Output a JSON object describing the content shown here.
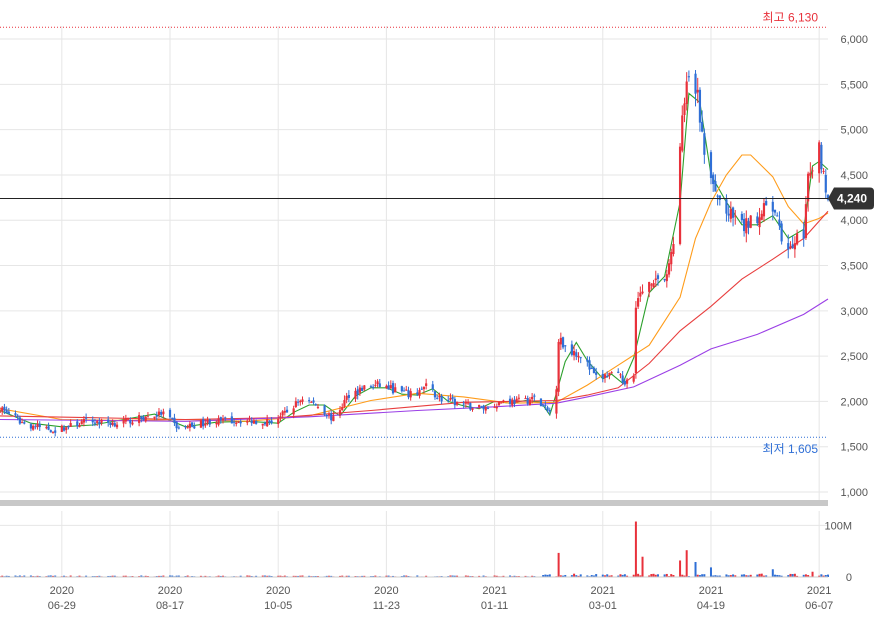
{
  "chart_data": {
    "type": "candlestick",
    "title": "",
    "price_axis": {
      "ylim": [
        1000,
        6100
      ],
      "ticks": [
        1000,
        1500,
        2000,
        2500,
        3000,
        3500,
        4000,
        4500,
        5000,
        5500,
        6000
      ],
      "tick_labels": [
        "1,000",
        "1,500",
        "2,000",
        "2,500",
        "3,000",
        "3,500",
        "4,000",
        "4,500",
        "5,000",
        "5,500",
        "6,000"
      ]
    },
    "volume_axis": {
      "ylim": [
        0,
        120
      ],
      "ticks": [
        0,
        100
      ],
      "tick_labels": [
        "0",
        "100M"
      ]
    },
    "x_axis": {
      "range": [
        "2020-06-01",
        "2021-06-11"
      ],
      "ticks": [
        {
          "date": "2020-06-29",
          "year": "2020",
          "label": "06-29"
        },
        {
          "date": "2020-08-17",
          "year": "2020",
          "label": "08-17"
        },
        {
          "date": "2020-10-05",
          "year": "2020",
          "label": "10-05"
        },
        {
          "date": "2020-11-23",
          "year": "2020",
          "label": "11-23"
        },
        {
          "date": "2021-01-11",
          "year": "2021",
          "label": "01-11"
        },
        {
          "date": "2021-03-01",
          "year": "2021",
          "label": "03-01"
        },
        {
          "date": "2021-04-19",
          "year": "2021",
          "label": "04-19"
        },
        {
          "date": "2021-06-07",
          "year": "2021",
          "label": "06-07"
        }
      ]
    },
    "high_marker": {
      "label": "최고 6,130",
      "value": 6130
    },
    "low_marker": {
      "label": "최저 1,605",
      "value": 1605
    },
    "current_price": {
      "label": "4,240",
      "value": 4240
    },
    "colors": {
      "up": "#e8313b",
      "down": "#2f6fd6",
      "high_line": "#e8313b",
      "low_line": "#2f6fd6",
      "ma5": "#2ca02c",
      "ma20": "#ff9c1a",
      "ma60": "#e83e3e",
      "ma120": "#9b3fe6",
      "grid": "#e6e6e6",
      "current_line": "#222222",
      "current_badge": "#333333"
    },
    "moving_averages": [
      {
        "period": 5,
        "color": "#2ca02c",
        "points": [
          [
            "2020-06-01",
            1900
          ],
          [
            "2020-06-15",
            1760
          ],
          [
            "2020-06-29",
            1720
          ],
          [
            "2020-07-13",
            1740
          ],
          [
            "2020-07-27",
            1800
          ],
          [
            "2020-08-10",
            1860
          ],
          [
            "2020-08-24",
            1720
          ],
          [
            "2020-09-07",
            1770
          ],
          [
            "2020-09-21",
            1780
          ],
          [
            "2020-10-05",
            1760
          ],
          [
            "2020-10-12",
            1880
          ],
          [
            "2020-10-19",
            1960
          ],
          [
            "2020-10-26",
            1960
          ],
          [
            "2020-11-02",
            1840
          ],
          [
            "2020-11-09",
            2060
          ],
          [
            "2020-11-16",
            2150
          ],
          [
            "2020-11-23",
            2150
          ],
          [
            "2020-11-30",
            2080
          ],
          [
            "2020-12-07",
            2070
          ],
          [
            "2020-12-14",
            2140
          ],
          [
            "2020-12-21",
            2000
          ],
          [
            "2020-12-28",
            1950
          ],
          [
            "2021-01-04",
            1920
          ],
          [
            "2021-01-11",
            2000
          ],
          [
            "2021-01-18",
            1980
          ],
          [
            "2021-01-25",
            2010
          ],
          [
            "2021-02-01",
            1990
          ],
          [
            "2021-02-05",
            1850
          ],
          [
            "2021-02-08",
            2090
          ],
          [
            "2021-02-12",
            2440
          ],
          [
            "2021-02-17",
            2650
          ],
          [
            "2021-02-22",
            2450
          ],
          [
            "2021-03-01",
            2250
          ],
          [
            "2021-03-05",
            2300
          ],
          [
            "2021-03-10",
            2200
          ],
          [
            "2021-03-15",
            2480
          ],
          [
            "2021-03-22",
            3200
          ],
          [
            "2021-03-29",
            3380
          ],
          [
            "2021-04-05",
            4200
          ],
          [
            "2021-04-09",
            5400
          ],
          [
            "2021-04-14",
            5300
          ],
          [
            "2021-04-19",
            4500
          ],
          [
            "2021-04-26",
            4200
          ],
          [
            "2021-05-03",
            3950
          ],
          [
            "2021-05-10",
            3950
          ],
          [
            "2021-05-17",
            4050
          ],
          [
            "2021-05-24",
            3800
          ],
          [
            "2021-05-31",
            3900
          ],
          [
            "2021-06-04",
            4600
          ],
          [
            "2021-06-07",
            4650
          ],
          [
            "2021-06-11",
            4560
          ]
        ]
      },
      {
        "period": 20,
        "color": "#ff9c1a",
        "points": [
          [
            "2020-06-01",
            1920
          ],
          [
            "2020-06-29",
            1800
          ],
          [
            "2020-07-27",
            1790
          ],
          [
            "2020-08-24",
            1800
          ],
          [
            "2020-09-21",
            1780
          ],
          [
            "2020-10-19",
            1840
          ],
          [
            "2020-11-16",
            2010
          ],
          [
            "2020-12-07",
            2090
          ],
          [
            "2020-12-28",
            2050
          ],
          [
            "2021-01-18",
            1980
          ],
          [
            "2021-02-08",
            1990
          ],
          [
            "2021-02-22",
            2180
          ],
          [
            "2021-03-08",
            2400
          ],
          [
            "2021-03-22",
            2620
          ],
          [
            "2021-04-05",
            3150
          ],
          [
            "2021-04-12",
            3800
          ],
          [
            "2021-04-19",
            4200
          ],
          [
            "2021-04-26",
            4500
          ],
          [
            "2021-05-03",
            4720
          ],
          [
            "2021-05-07",
            4720
          ],
          [
            "2021-05-17",
            4480
          ],
          [
            "2021-05-24",
            4150
          ],
          [
            "2021-05-31",
            3960
          ],
          [
            "2021-06-07",
            4020
          ],
          [
            "2021-06-11",
            4080
          ]
        ]
      },
      {
        "period": 60,
        "color": "#e83e3e",
        "points": [
          [
            "2020-06-01",
            1840
          ],
          [
            "2020-07-13",
            1820
          ],
          [
            "2020-08-24",
            1800
          ],
          [
            "2020-10-05",
            1820
          ],
          [
            "2020-11-16",
            1900
          ],
          [
            "2020-12-28",
            1990
          ],
          [
            "2021-02-08",
            2010
          ],
          [
            "2021-02-22",
            2070
          ],
          [
            "2021-03-08",
            2150
          ],
          [
            "2021-03-22",
            2420
          ],
          [
            "2021-04-05",
            2780
          ],
          [
            "2021-04-19",
            3050
          ],
          [
            "2021-05-03",
            3350
          ],
          [
            "2021-05-17",
            3570
          ],
          [
            "2021-05-31",
            3800
          ],
          [
            "2021-06-11",
            4100
          ]
        ]
      },
      {
        "period": 120,
        "color": "#9b3fe6",
        "points": [
          [
            "2020-06-01",
            1800
          ],
          [
            "2020-08-24",
            1780
          ],
          [
            "2020-10-19",
            1830
          ],
          [
            "2020-12-07",
            1900
          ],
          [
            "2021-01-11",
            1940
          ],
          [
            "2021-02-08",
            1980
          ],
          [
            "2021-02-22",
            2050
          ],
          [
            "2021-03-15",
            2160
          ],
          [
            "2021-04-05",
            2400
          ],
          [
            "2021-04-19",
            2580
          ],
          [
            "2021-05-10",
            2740
          ],
          [
            "2021-05-31",
            2960
          ],
          [
            "2021-06-11",
            3130
          ]
        ]
      }
    ],
    "anchors": [
      [
        "2020-06-01",
        1930
      ],
      [
        "2020-06-12",
        1750
      ],
      [
        "2020-06-26",
        1680
      ],
      [
        "2020-07-10",
        1780
      ],
      [
        "2020-07-24",
        1760
      ],
      [
        "2020-08-07",
        1830
      ],
      [
        "2020-08-14",
        1870
      ],
      [
        "2020-08-21",
        1700
      ],
      [
        "2020-09-04",
        1780
      ],
      [
        "2020-09-18",
        1790
      ],
      [
        "2020-10-02",
        1780
      ],
      [
        "2020-10-09",
        1880
      ],
      [
        "2020-10-16",
        2040
      ],
      [
        "2020-10-23",
        1950
      ],
      [
        "2020-10-30",
        1800
      ],
      [
        "2020-11-06",
        2080
      ],
      [
        "2020-11-13",
        2150
      ],
      [
        "2020-11-20",
        2180
      ],
      [
        "2020-12-04",
        2070
      ],
      [
        "2020-12-11",
        2160
      ],
      [
        "2020-12-18",
        2020
      ],
      [
        "2021-01-01",
        1940
      ],
      [
        "2021-01-08",
        1930
      ],
      [
        "2021-01-15",
        2010
      ],
      [
        "2021-01-22",
        2000
      ],
      [
        "2021-01-29",
        2030
      ],
      [
        "2021-02-04",
        1890
      ],
      [
        "2021-02-05",
        1880
      ],
      [
        "2021-02-08",
        2180
      ],
      [
        "2021-02-09",
        2690
      ],
      [
        "2021-02-12",
        2600
      ],
      [
        "2021-02-19",
        2520
      ],
      [
        "2021-02-26",
        2250
      ],
      [
        "2021-03-05",
        2300
      ],
      [
        "2021-03-12",
        2220
      ],
      [
        "2021-03-15",
        2280
      ],
      [
        "2021-03-16",
        3100
      ],
      [
        "2021-03-23",
        3350
      ],
      [
        "2021-03-30",
        3350
      ],
      [
        "2021-04-02",
        3800
      ],
      [
        "2021-04-06",
        5100
      ],
      [
        "2021-04-09",
        5600
      ],
      [
        "2021-04-13",
        5350
      ],
      [
        "2021-04-16",
        4700
      ],
      [
        "2021-04-21",
        4280
      ],
      [
        "2021-04-27",
        4060
      ],
      [
        "2021-05-04",
        3920
      ],
      [
        "2021-05-11",
        4080
      ],
      [
        "2021-05-17",
        4140
      ],
      [
        "2021-05-21",
        3800
      ],
      [
        "2021-05-25",
        3700
      ],
      [
        "2021-05-31",
        3880
      ],
      [
        "2021-06-02",
        4420
      ],
      [
        "2021-06-07",
        4800
      ],
      [
        "2021-06-11",
        4240
      ]
    ],
    "volume_spikes": [
      [
        "2021-02-09",
        45
      ],
      [
        "2021-03-16",
        105
      ],
      [
        "2021-03-19",
        38
      ],
      [
        "2021-04-05",
        30
      ],
      [
        "2021-04-08",
        50
      ],
      [
        "2021-04-12",
        28
      ],
      [
        "2021-04-19",
        15
      ],
      [
        "2021-05-17",
        12
      ],
      [
        "2021-06-04",
        10
      ]
    ]
  }
}
